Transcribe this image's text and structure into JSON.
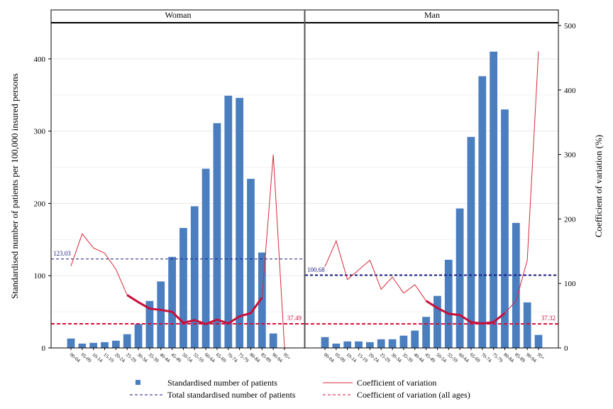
{
  "chart_data": {
    "type": "bar",
    "ylabel": "Standardised number of patients per 100,000 insured persons",
    "y2label": "Coefficient of variation (%)",
    "ylim": [
      0,
      450
    ],
    "y2lim": [
      0,
      500
    ],
    "yticks": [
      0,
      100,
      200,
      300,
      400
    ],
    "y2ticks": [
      0,
      100,
      200,
      300,
      400,
      500
    ],
    "grid": true,
    "legend_position": "bottom",
    "categories": [
      "00-04",
      "05-09",
      "10-14",
      "15-19",
      "20-24",
      "25-29",
      "30-34",
      "35-39",
      "40-44",
      "45-49",
      "50-54",
      "55-59",
      "60-64",
      "65-69",
      "70-74",
      "75-79",
      "80-84",
      "85-89",
      "90-94",
      "95+"
    ],
    "panels": [
      {
        "name": "Woman",
        "values": [
          13,
          6,
          7,
          8,
          10,
          19,
          33,
          65,
          92,
          126,
          166,
          196,
          248,
          311,
          349,
          346,
          234,
          132,
          20,
          0
        ],
        "cv": [
          127,
          177,
          155,
          147,
          122,
          82,
          71,
          61,
          59,
          56,
          39,
          43,
          37,
          44,
          38,
          49,
          54,
          78,
          300,
          0
        ],
        "cv_bold_range": [
          5,
          17
        ],
        "total_value": 123.03,
        "total_label": "123.03",
        "cv_all_ages": 37.49,
        "cv_all_label": "37.49"
      },
      {
        "name": "Man",
        "values": [
          15,
          6,
          9,
          9,
          8,
          12,
          12,
          17,
          24,
          43,
          72,
          122,
          193,
          292,
          376,
          410,
          330,
          173,
          63,
          18
        ],
        "cv": [
          126,
          166,
          106,
          121,
          136,
          91,
          110,
          85,
          98,
          73,
          62,
          53,
          51,
          40,
          38,
          40,
          54,
          73,
          136,
          460
        ],
        "cv_bold_range": [
          9,
          16
        ],
        "total_value": 100.68,
        "total_label": "100.68",
        "cv_all_ages": 37.32,
        "cv_all_label": "37.32"
      }
    ],
    "legend": [
      {
        "label": "Standardised number of patients",
        "kind": "bar"
      },
      {
        "label": "Coefficient of variation",
        "kind": "line"
      },
      {
        "label": "Total standardised number of patients",
        "kind": "dash-navy"
      },
      {
        "label": "Coefficient of variation (all ages)",
        "kind": "dash-red"
      }
    ],
    "colors": {
      "bar": "#4a7ebf",
      "cv_line": "#d8283a",
      "cv_bold": "#c8103a",
      "total_line": "#1a1a80",
      "cv_all_line": "#d8103a",
      "grid": "#e8e8e8"
    }
  }
}
